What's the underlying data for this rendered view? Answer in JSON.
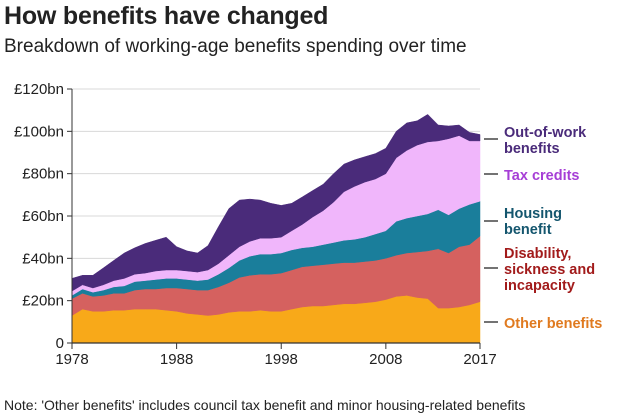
{
  "header": {
    "title": "How benefits have changed",
    "subtitle": "Breakdown of working-age benefits spending over time"
  },
  "note": "Note: 'Other benefits' includes council tax benefit and minor housing-related benefits",
  "chart_data": {
    "type": "area",
    "stacked": true,
    "title": "How benefits have changed",
    "subtitle": "Breakdown of working-age benefits spending over time",
    "xlabel": "",
    "ylabel": "",
    "xlim": [
      1978,
      2017
    ],
    "ylim": [
      0,
      120
    ],
    "grid": true,
    "legend_placement": "right (inline labels)",
    "x_ticks": [
      "1978",
      "1988",
      "1998",
      "2008",
      "2017"
    ],
    "y_ticks": [
      "0",
      "£20bn",
      "£40bn",
      "£60bn",
      "£80bn",
      "£100bn",
      "£120bn"
    ],
    "x": [
      1978,
      1979,
      1980,
      1981,
      1982,
      1983,
      1984,
      1985,
      1986,
      1987,
      1988,
      1989,
      1990,
      1991,
      1992,
      1993,
      1994,
      1995,
      1996,
      1997,
      1998,
      1999,
      2000,
      2001,
      2002,
      2003,
      2004,
      2005,
      2006,
      2007,
      2008,
      2009,
      2010,
      2011,
      2012,
      2013,
      2014,
      2015,
      2016,
      2017
    ],
    "series": [
      {
        "name": "Other benefits",
        "color": "#f8a919",
        "label_color": "#e07a1f",
        "values": [
          13,
          16,
          15,
          15,
          15.5,
          15.5,
          16,
          16,
          16,
          15.5,
          15,
          14,
          13.5,
          13,
          13.5,
          14.5,
          15,
          15,
          15.5,
          15,
          15,
          16,
          17,
          17.5,
          17.5,
          18,
          18.5,
          18.5,
          19,
          19.5,
          20.5,
          22,
          22.5,
          21.5,
          21,
          16.5,
          16.5,
          17,
          18,
          19.5
        ]
      },
      {
        "name": "Disability, sickness and incapacity",
        "color": "#d5615f",
        "label_color": "#a21b1b",
        "values": [
          8,
          7.5,
          7,
          7.5,
          8,
          8,
          9,
          9.5,
          9.5,
          10.5,
          11,
          11.5,
          11.5,
          12,
          13,
          14,
          16,
          17,
          17,
          17.5,
          18,
          18.5,
          19,
          19,
          19.5,
          19.5,
          19.5,
          19.5,
          19.5,
          19.5,
          19.5,
          19.5,
          20,
          21.5,
          22.5,
          28,
          26,
          28.5,
          28.5,
          31
        ]
      },
      {
        "name": "Housing benefit",
        "color": "#1a7e9b",
        "label_color": "#14566e",
        "values": [
          1.5,
          2,
          2,
          2.5,
          3,
          3.5,
          4,
          4,
          4.5,
          4.5,
          4.5,
          4.5,
          4.5,
          5,
          6,
          7,
          8,
          9,
          9.5,
          9.5,
          9.5,
          9.5,
          9,
          9,
          9.5,
          10,
          10.5,
          11,
          11.5,
          12.5,
          13,
          16,
          16.5,
          17,
          17.5,
          18.5,
          18,
          18,
          19,
          16.5
        ]
      },
      {
        "name": "Tax credits",
        "color": "#f0b6fb",
        "label_color": "#a63ed6",
        "values": [
          2,
          2,
          2,
          2.5,
          3,
          3.5,
          3.5,
          3.5,
          4,
          4,
          4,
          4,
          4,
          4.5,
          5,
          6,
          6.5,
          7,
          7.5,
          7.5,
          7.5,
          9,
          11,
          14,
          16,
          19,
          23,
          25,
          26,
          26,
          27,
          30,
          32,
          33.5,
          34,
          32.5,
          36,
          34.5,
          30,
          28.5
        ]
      },
      {
        "name": "Out-of-work benefits",
        "color": "#4a2b7a",
        "label_color": "#4a2b7a",
        "values": [
          6,
          4.5,
          6,
          8,
          9.5,
          12,
          12.5,
          14,
          14.5,
          15.5,
          11,
          9.5,
          9,
          11.5,
          17.5,
          22,
          22,
          20,
          18,
          16.5,
          15,
          13,
          13,
          12.5,
          12.5,
          13.5,
          13,
          12.5,
          12,
          12,
          12,
          12.5,
          13,
          11.5,
          13,
          7.5,
          6,
          5,
          4,
          3
        ]
      }
    ],
    "totals_approx": [
      30.5,
      32,
      32,
      35.5,
      39,
      42.5,
      45,
      47,
      48.5,
      50,
      45.5,
      43.5,
      42.5,
      45.5,
      55,
      63.5,
      67.5,
      68,
      67.5,
      66,
      65,
      66,
      69,
      72,
      75,
      80,
      84.5,
      86.5,
      88,
      89.5,
      92,
      100,
      104,
      105,
      108,
      103,
      102.5,
      103,
      99.5,
      98.5
    ]
  }
}
